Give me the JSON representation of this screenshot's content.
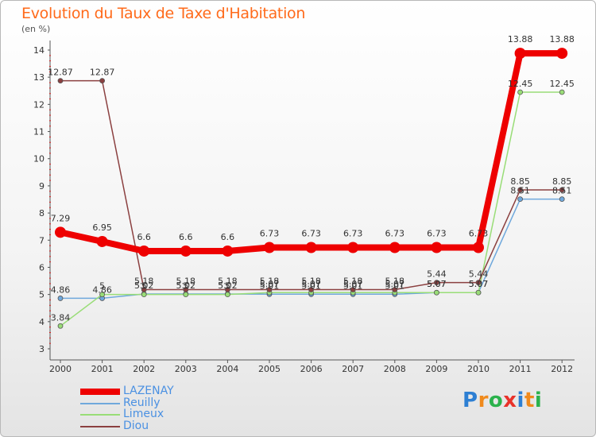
{
  "header": {
    "title": "Evolution du Taux de Taxe d'Habitation",
    "subtitle": "(en %)"
  },
  "logo": {
    "letters": [
      "P",
      "r",
      "o",
      "x",
      "i",
      "t",
      "i"
    ],
    "colors": [
      "#2d7fd3",
      "#f08a1c",
      "#2bb24c",
      "#e8322a",
      "#2d7fd3",
      "#f08a1c",
      "#2bb24c"
    ]
  },
  "chart_data": {
    "type": "line",
    "title": "Evolution du Taux de Taxe d'Habitation",
    "ylabel": "(en %)",
    "xlabel": "",
    "categories": [
      "2000",
      "2001",
      "2002",
      "2003",
      "2004",
      "2005",
      "2006",
      "2007",
      "2008",
      "2009",
      "2010",
      "2011",
      "2012"
    ],
    "ylim": [
      3,
      14
    ],
    "yticks": [
      "3",
      "4",
      "5",
      "6",
      "7",
      "8",
      "9",
      "10",
      "11",
      "12",
      "13",
      "14"
    ],
    "grid": false,
    "legend": "bottom-left",
    "series": [
      {
        "name": "LAZENAY",
        "color": "#ee0000",
        "values": [
          7.29,
          6.95,
          6.6,
          6.6,
          6.6,
          6.73,
          6.73,
          6.73,
          6.73,
          6.73,
          6.73,
          13.88,
          13.88
        ],
        "labels": [
          "7.29",
          "6.95",
          "6.6",
          "6.6",
          "6.6",
          "6.73",
          "6.73",
          "6.73",
          "6.73",
          "6.73",
          "6.73",
          "13.88",
          "13.88"
        ]
      },
      {
        "name": "Reuilly",
        "color": "#6fa8dc",
        "values": [
          4.86,
          4.86,
          5.02,
          5.02,
          5.02,
          5.01,
          5.01,
          5.01,
          5.01,
          5.07,
          5.07,
          8.51,
          8.51
        ],
        "labels": [
          "4.86",
          "4.86",
          "5.02",
          "5.02",
          "5.02",
          "5.01",
          "5.01",
          "5.01",
          "5.01",
          "5.07",
          "5.07",
          "8.51",
          "8.51"
        ]
      },
      {
        "name": "Limeux",
        "color": "#99dd77",
        "values": [
          3.84,
          5,
          5,
          5,
          5,
          5.07,
          5.07,
          5.07,
          5.07,
          5.07,
          5.07,
          12.45,
          12.45
        ],
        "labels": [
          "3.84",
          "5",
          "5",
          "5",
          "5",
          "5.07",
          "5.07",
          "5.07",
          "5.07",
          "5.07",
          "5.07",
          "12.45",
          "12.45"
        ]
      },
      {
        "name": "Diou",
        "color": "#8b4040",
        "values": [
          12.87,
          12.87,
          5.18,
          5.18,
          5.18,
          5.18,
          5.18,
          5.18,
          5.18,
          5.44,
          5.44,
          8.85,
          8.85
        ],
        "labels": [
          "12.87",
          "12.87",
          "5.18",
          "5.18",
          "5.18",
          "5.18",
          "5.18",
          "5.18",
          "5.18",
          "5.44",
          "5.44",
          "8.85",
          "8.85"
        ]
      }
    ]
  }
}
